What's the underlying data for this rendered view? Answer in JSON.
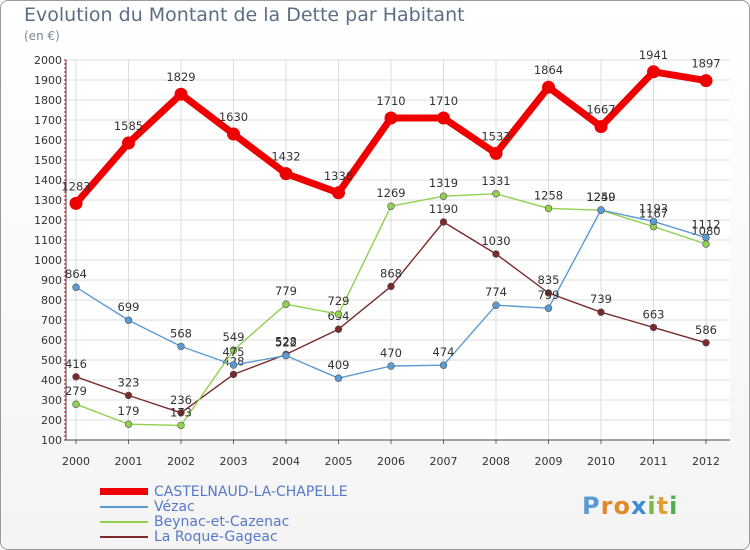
{
  "title": "Evolution du Montant de la Dette par Habitant",
  "subtitle": "(en €)",
  "logo_text": "Proxiti",
  "chart_data": {
    "type": "line",
    "x": [
      "2000",
      "2001",
      "2002",
      "2003",
      "2004",
      "2005",
      "2006",
      "2007",
      "2008",
      "2009",
      "2010",
      "2011",
      "2012"
    ],
    "ylim": [
      100,
      2000
    ],
    "yticks": [
      100,
      200,
      300,
      400,
      500,
      600,
      700,
      800,
      900,
      1000,
      1100,
      1200,
      1300,
      1400,
      1500,
      1600,
      1700,
      1800,
      1900,
      2000
    ],
    "grid": true,
    "legend_position": "bottom-left",
    "series": [
      {
        "name": "CASTELNAUD-LA-CHAPELLE",
        "color": "#ee0000",
        "values": [
          1283,
          1585,
          1829,
          1630,
          1432,
          1336,
          1710,
          1710,
          1533,
          1864,
          1667,
          1941,
          1897
        ]
      },
      {
        "name": "Vézac",
        "color": "#5b9bd5",
        "values": [
          864,
          699,
          568,
          475,
          522,
          409,
          470,
          474,
          774,
          759,
          1250,
          1193,
          1112
        ]
      },
      {
        "name": "Beynac-et-Cazenac",
        "color": "#92d050",
        "values": [
          279,
          179,
          173,
          549,
          779,
          729,
          1269,
          1319,
          1331,
          1258,
          1249,
          1167,
          1080
        ]
      },
      {
        "name": "La Roque-Gageac",
        "color": "#7a2a2a",
        "values": [
          416,
          323,
          236,
          428,
          528,
          654,
          868,
          1190,
          1030,
          835,
          739,
          663,
          586
        ]
      }
    ]
  }
}
